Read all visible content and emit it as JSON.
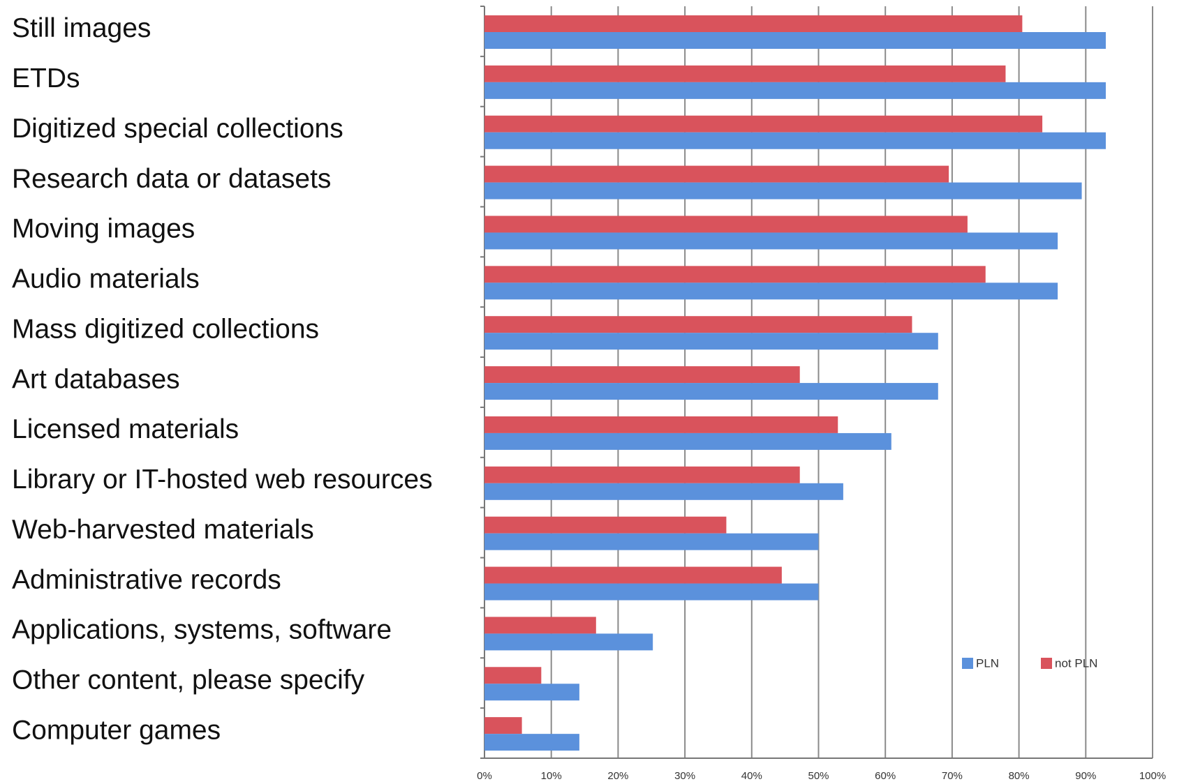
{
  "chart_data": {
    "type": "bar",
    "orientation": "horizontal",
    "categories": [
      "Still images",
      "ETDs",
      "Digitized special collections",
      "Research data or datasets",
      "Moving images",
      "Audio materials",
      "Mass digitized collections",
      "Art  databases",
      "Licensed materials",
      "Library or IT-hosted web resources",
      "Web-harvested materials",
      "Administrative records",
      "Applications, systems, software",
      "Other content, please specify",
      "Computer games"
    ],
    "series": [
      {
        "name": "not PLN",
        "color": "#d9535c",
        "values": [
          80.5,
          78,
          83.5,
          69.5,
          72.3,
          75,
          64,
          47.2,
          52.9,
          47.2,
          36.2,
          44.5,
          16.7,
          8.5,
          5.6
        ]
      },
      {
        "name": "PLN",
        "color": "#5b91dc",
        "values": [
          93,
          93,
          93,
          89.4,
          85.8,
          85.8,
          67.9,
          67.9,
          60.9,
          53.7,
          50,
          50,
          25.2,
          14.2,
          14.2
        ]
      }
    ],
    "xlim": [
      0,
      100
    ],
    "xticks": [
      {
        "value": 0,
        "label": "0%"
      },
      {
        "value": 10,
        "label": "10%"
      },
      {
        "value": 20,
        "label": "20%"
      },
      {
        "value": 30,
        "label": "30%"
      },
      {
        "value": 40,
        "label": "40%"
      },
      {
        "value": 50,
        "label": "50%"
      },
      {
        "value": 60,
        "label": "60%"
      },
      {
        "value": 70,
        "label": "70%"
      },
      {
        "value": 80,
        "label": "80%"
      },
      {
        "value": 90,
        "label": "90%"
      },
      {
        "value": 100,
        "label": "100%"
      }
    ],
    "grid": true
  }
}
